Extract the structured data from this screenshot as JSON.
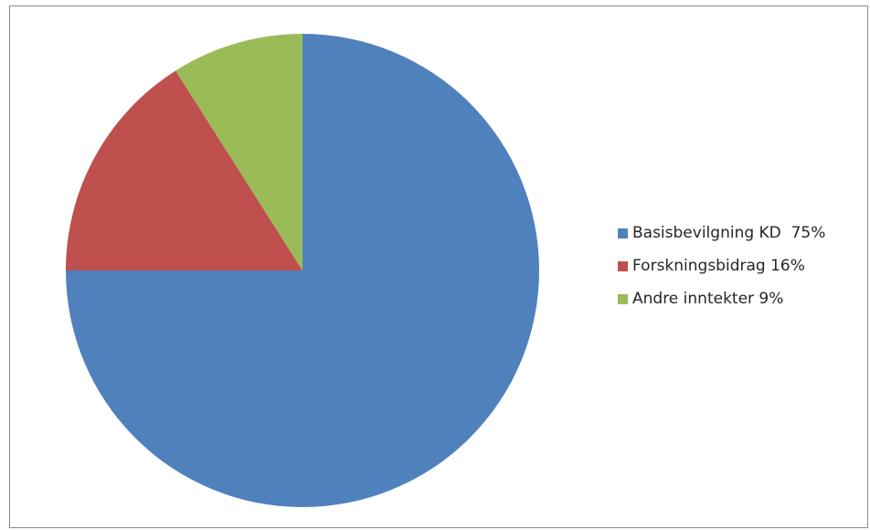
{
  "chart_data": {
    "type": "pie",
    "slices": [
      {
        "label": "Basisbevilgning KD  75%",
        "value": 75,
        "color": "#4f81bd"
      },
      {
        "label": "Forskningsbidrag 16%",
        "value": 16,
        "color": "#c0504d"
      },
      {
        "label": "Andre inntekter 9%",
        "value": 9,
        "color": "#9bbb59"
      }
    ],
    "legend_position": "right"
  }
}
